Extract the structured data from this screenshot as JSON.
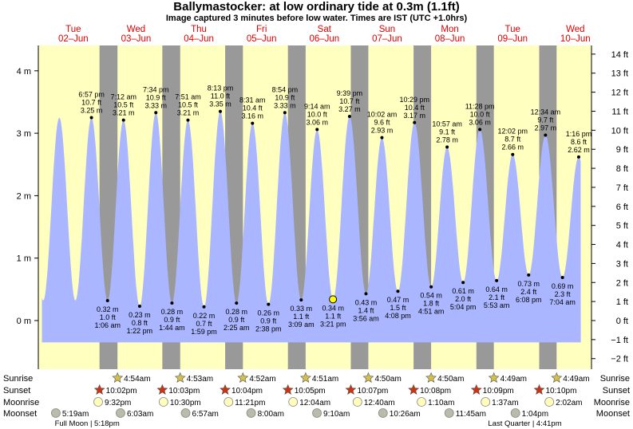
{
  "title": "Ballymastocker: at low  ordinary tide at 0.3m (1.1ft)",
  "subtitle": "Image captured 3 minutes before low water. Times are IST (UTC +1.0hrs)",
  "days": [
    {
      "name": "Tue",
      "date": "02–Jun"
    },
    {
      "name": "Wed",
      "date": "03–Jun"
    },
    {
      "name": "Thu",
      "date": "04–Jun"
    },
    {
      "name": "Fri",
      "date": "05–Jun"
    },
    {
      "name": "Sat",
      "date": "06–Jun"
    },
    {
      "name": "Sun",
      "date": "07–Jun"
    },
    {
      "name": "Mon",
      "date": "08–Jun"
    },
    {
      "name": "Tue",
      "date": "09–Jun"
    },
    {
      "name": "Wed",
      "date": "10–Jun"
    }
  ],
  "chart_data": {
    "type": "area",
    "title": "Ballymastocker: at low  ordinary tide at 0.3m (1.1ft)",
    "x_unit": "hours from 00:00 IST Tue 02-Jun",
    "ylabel_left": "m",
    "ylabel_right": "ft",
    "ylim_m": [
      -0.6,
      4.5
    ],
    "left_ticks": [
      {
        "v": 0,
        "label": "0 m"
      },
      {
        "v": 1,
        "label": "1 m"
      },
      {
        "v": 2,
        "label": "2 m"
      },
      {
        "v": 3,
        "label": "3 m"
      },
      {
        "v": 4,
        "label": "4 m"
      }
    ],
    "right_ticks": [
      {
        "v": -2,
        "label": "−2 ft"
      },
      {
        "v": -1,
        "label": "−1 ft"
      },
      {
        "v": 0,
        "label": "0 ft"
      },
      {
        "v": 1,
        "label": "1 ft"
      },
      {
        "v": 2,
        "label": "2 ft"
      },
      {
        "v": 3,
        "label": "3 ft"
      },
      {
        "v": 4,
        "label": "4 ft"
      },
      {
        "v": 5,
        "label": "5 ft"
      },
      {
        "v": 6,
        "label": "6 ft"
      },
      {
        "v": 7,
        "label": "7 ft"
      },
      {
        "v": 8,
        "label": "8 ft"
      },
      {
        "v": 9,
        "label": "9 ft"
      },
      {
        "v": 10,
        "label": "10 ft"
      },
      {
        "v": 11,
        "label": "11 ft"
      },
      {
        "v": 12,
        "label": "12 ft"
      },
      {
        "v": 13,
        "label": "13 ft"
      },
      {
        "v": 14,
        "label": "14 ft"
      }
    ],
    "extremes": [
      {
        "type": "high",
        "t": 18.95,
        "time": "6:57 pm",
        "m": 3.25,
        "ft": "10.7 ft",
        "m_label": "3.25 m"
      },
      {
        "type": "low",
        "t": 25.1,
        "time": "1:06 am",
        "m": 0.32,
        "ft": "1.0 ft",
        "m_label": "0.32 m"
      },
      {
        "type": "high",
        "t": 31.2,
        "time": "7:12 am",
        "m": 3.21,
        "ft": "10.5 ft",
        "m_label": "3.21 m"
      },
      {
        "type": "low",
        "t": 37.37,
        "time": "1:22 pm",
        "m": 0.23,
        "ft": "0.8 ft",
        "m_label": "0.23 m"
      },
      {
        "type": "high",
        "t": 43.57,
        "time": "7:34 pm",
        "m": 3.33,
        "ft": "10.9 ft",
        "m_label": "3.33 m"
      },
      {
        "type": "low",
        "t": 49.73,
        "time": "1:44 am",
        "m": 0.28,
        "ft": "0.9 ft",
        "m_label": "0.28 m"
      },
      {
        "type": "high",
        "t": 55.85,
        "time": "7:51 am",
        "m": 3.21,
        "ft": "10.5 ft",
        "m_label": "3.21 m"
      },
      {
        "type": "low",
        "t": 61.98,
        "time": "1:59 pm",
        "m": 0.22,
        "ft": "0.7 ft",
        "m_label": "0.22 m"
      },
      {
        "type": "high",
        "t": 68.22,
        "time": "8:13 pm",
        "m": 3.35,
        "ft": "11.0 ft",
        "m_label": "3.35 m"
      },
      {
        "type": "low",
        "t": 74.42,
        "time": "2:25 am",
        "m": 0.28,
        "ft": "0.9 ft",
        "m_label": "0.28 m"
      },
      {
        "type": "high",
        "t": 80.52,
        "time": "8:31 am",
        "m": 3.16,
        "ft": "10.4 ft",
        "m_label": "3.16 m"
      },
      {
        "type": "low",
        "t": 86.63,
        "time": "2:38 pm",
        "m": 0.26,
        "ft": "0.9 ft",
        "m_label": "0.26 m"
      },
      {
        "type": "high",
        "t": 92.9,
        "time": "8:54 pm",
        "m": 3.33,
        "ft": "10.9 ft",
        "m_label": "3.33 m"
      },
      {
        "type": "low",
        "t": 99.15,
        "time": "3:09 am",
        "m": 0.33,
        "ft": "1.1 ft",
        "m_label": "0.33 m"
      },
      {
        "type": "high",
        "t": 105.23,
        "time": "9:14 am",
        "m": 3.06,
        "ft": "10.0 ft",
        "m_label": "3.06 m"
      },
      {
        "type": "low",
        "t": 111.35,
        "time": "3:21 pm",
        "m": 0.34,
        "ft": "1.1 ft",
        "m_label": "0.34 m"
      },
      {
        "type": "high",
        "t": 117.65,
        "time": "9:39 pm",
        "m": 3.27,
        "ft": "10.7 ft",
        "m_label": "3.27 m"
      },
      {
        "type": "low",
        "t": 123.93,
        "time": "3:56 am",
        "m": 0.43,
        "ft": "1.4 ft",
        "m_label": "0.43 m"
      },
      {
        "type": "high",
        "t": 130.03,
        "time": "10:02 am",
        "m": 2.93,
        "ft": "9.6 ft",
        "m_label": "2.93 m"
      },
      {
        "type": "low",
        "t": 136.13,
        "time": "4:08 pm",
        "m": 0.47,
        "ft": "1.5 ft",
        "m_label": "0.47 m"
      },
      {
        "type": "high",
        "t": 142.48,
        "time": "10:29 pm",
        "m": 3.17,
        "ft": "10.4 ft",
        "m_label": "3.17 m"
      },
      {
        "type": "low",
        "t": 148.85,
        "time": "4:51 am",
        "m": 0.54,
        "ft": "1.8 ft",
        "m_label": "0.54 m"
      },
      {
        "type": "high",
        "t": 154.95,
        "time": "10:57 am",
        "m": 2.78,
        "ft": "9.1 ft",
        "m_label": "2.78 m"
      },
      {
        "type": "low",
        "t": 161.07,
        "time": "5:04 pm",
        "m": 0.61,
        "ft": "2.0 ft",
        "m_label": "0.61 m"
      },
      {
        "type": "high",
        "t": 167.47,
        "time": "11:28 pm",
        "m": 3.06,
        "ft": "10.0 ft",
        "m_label": "3.06 m"
      },
      {
        "type": "low",
        "t": 173.88,
        "time": "5:53 am",
        "m": 0.64,
        "ft": "2.1 ft",
        "m_label": "0.64 m"
      },
      {
        "type": "high",
        "t": 180.03,
        "time": "12:02 pm",
        "m": 2.66,
        "ft": "8.7 ft",
        "m_label": "2.66 m"
      },
      {
        "type": "low",
        "t": 186.13,
        "time": "6:08 pm",
        "m": 0.73,
        "ft": "2.4 ft",
        "m_label": "0.73 m"
      },
      {
        "type": "high",
        "t": 192.57,
        "time": "12:34 am",
        "m": 2.97,
        "ft": "9.7 ft",
        "m_label": "2.97 m"
      },
      {
        "type": "low",
        "t": 199.07,
        "time": "7:04 am",
        "m": 0.69,
        "ft": "2.3 ft",
        "m_label": "0.69 m"
      },
      {
        "type": "high",
        "t": 205.27,
        "time": "1:16 pm",
        "m": 2.62,
        "ft": "8.6 ft",
        "m_label": "2.62 m"
      }
    ],
    "current_point": {
      "t": 111.3,
      "m": 0.34
    },
    "night_periods": [
      [
        22.03,
        28.9
      ],
      [
        46.05,
        52.88
      ],
      [
        70.07,
        76.87
      ],
      [
        94.08,
        100.85
      ],
      [
        118.12,
        124.83
      ],
      [
        142.13,
        148.83
      ],
      [
        166.15,
        172.82
      ],
      [
        190.17,
        196.82
      ]
    ],
    "colors": {
      "day_band": "#ffffc0",
      "night_band": "#999999",
      "tide_fill": "#aab6ff",
      "day_label": "#e00000",
      "sun_star": "#d4c04a",
      "sunset_star": "#cc3311",
      "moonrise": "#ffffbb",
      "moonset": "#bbbbaa"
    }
  },
  "rows": {
    "labels": {
      "sunrise": "Sunrise",
      "sunset": "Sunset",
      "moonrise": "Moonrise",
      "moonset": "Moonset"
    },
    "sunrise": [
      {
        "t": 28.9,
        "text": "4:54am"
      },
      {
        "t": 52.88,
        "text": "4:53am"
      },
      {
        "t": 76.87,
        "text": "4:52am"
      },
      {
        "t": 100.85,
        "text": "4:51am"
      },
      {
        "t": 124.83,
        "text": "4:50am"
      },
      {
        "t": 148.83,
        "text": "4:50am"
      },
      {
        "t": 172.82,
        "text": "4:49am"
      },
      {
        "t": 196.82,
        "text": "4:49am"
      }
    ],
    "sunset": [
      {
        "t": 22.03,
        "text": "10:02pm"
      },
      {
        "t": 46.05,
        "text": "10:03pm"
      },
      {
        "t": 70.07,
        "text": "10:04pm"
      },
      {
        "t": 94.08,
        "text": "10:05pm"
      },
      {
        "t": 118.12,
        "text": "10:07pm"
      },
      {
        "t": 142.13,
        "text": "10:08pm"
      },
      {
        "t": 166.15,
        "text": "10:09pm"
      },
      {
        "t": 190.17,
        "text": "10:10pm"
      }
    ],
    "moonrise": [
      {
        "t": 21.53,
        "text": "9:32pm"
      },
      {
        "t": 46.5,
        "text": "10:30pm"
      },
      {
        "t": 71.35,
        "text": "11:21pm"
      },
      {
        "t": 96.07,
        "text": "12:04am"
      },
      {
        "t": 120.67,
        "text": "12:40am"
      },
      {
        "t": 145.17,
        "text": "1:10am"
      },
      {
        "t": 169.62,
        "text": "1:37am"
      },
      {
        "t": 194.03,
        "text": "2:02am"
      }
    ],
    "moonset": [
      {
        "t": 5.32,
        "text": "5:19am"
      },
      {
        "t": 30.05,
        "text": "6:03am"
      },
      {
        "t": 54.95,
        "text": "6:57am"
      },
      {
        "t": 80.0,
        "text": "8:00am"
      },
      {
        "t": 105.17,
        "text": "9:10am"
      },
      {
        "t": 130.43,
        "text": "10:26am"
      },
      {
        "t": 155.75,
        "text": "11:45am"
      },
      {
        "t": 181.07,
        "text": "1:04pm"
      }
    ],
    "moon_phases": [
      {
        "t": 17.3,
        "text": "Full Moon | 5:18pm"
      },
      {
        "t": 184.68,
        "text": "Last Quarter | 4:41pm"
      }
    ]
  }
}
